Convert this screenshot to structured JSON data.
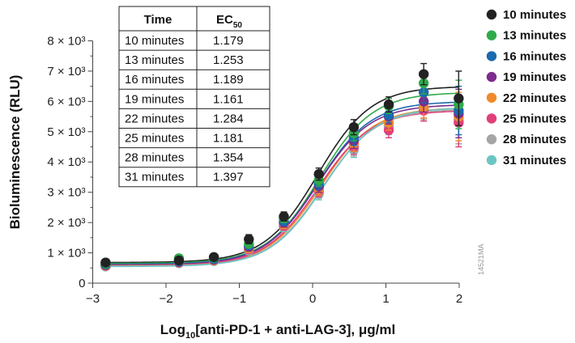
{
  "chart_data": {
    "type": "scatter",
    "xlabel": "Log10[anti-PD-1 + anti-LAG-3], μg/ml",
    "ylabel": "Bioluminescence (RLU)",
    "xlim": [
      -3,
      2
    ],
    "ylim": [
      0,
      8000
    ],
    "x_ticks": [
      {
        "v": -3,
        "label": "−3"
      },
      {
        "v": -2,
        "label": "−2"
      },
      {
        "v": -1,
        "label": "−1"
      },
      {
        "v": 0,
        "label": "0"
      },
      {
        "v": 1,
        "label": "1"
      },
      {
        "v": 2,
        "label": "2"
      }
    ],
    "y_ticks": [
      {
        "v": 0,
        "label": "0"
      },
      {
        "v": 1000,
        "label": "1 × 10³"
      },
      {
        "v": 2000,
        "label": "2 × 10³"
      },
      {
        "v": 3000,
        "label": "3 × 10³"
      },
      {
        "v": 4000,
        "label": "4 × 10³"
      },
      {
        "v": 5000,
        "label": "5 × 10³"
      },
      {
        "v": 6000,
        "label": "6 × 10³"
      },
      {
        "v": 7000,
        "label": "7 × 10³"
      },
      {
        "v": 8000,
        "label": "8 × 10³"
      }
    ],
    "x": [
      -2.824,
      -1.824,
      -1.347,
      -0.87,
      -0.392,
      0.085,
      0.562,
      1.039,
      1.516,
      1.993
    ],
    "series": [
      {
        "name": "10 minutes",
        "color": "#222222",
        "bottom": 680,
        "top": 6500,
        "ec50": 1.179,
        "values": [
          680,
          750,
          860,
          1450,
          2200,
          3600,
          5150,
          5900,
          6900,
          6100
        ],
        "errors": [
          60,
          80,
          80,
          150,
          150,
          200,
          250,
          250,
          350,
          900
        ]
      },
      {
        "name": "13 minutes",
        "color": "#2eaa4a",
        "bottom": 650,
        "top": 6300,
        "ec50": 1.253,
        "values": [
          650,
          820,
          840,
          1300,
          2150,
          3400,
          4950,
          5850,
          6600,
          5900
        ],
        "errors": [
          60,
          80,
          80,
          130,
          150,
          200,
          250,
          250,
          350,
          800
        ]
      },
      {
        "name": "16 minutes",
        "color": "#1a6aae",
        "bottom": 620,
        "top": 6000,
        "ec50": 1.189,
        "values": [
          620,
          720,
          800,
          1250,
          2050,
          3300,
          4800,
          5550,
          6300,
          5700
        ],
        "errors": [
          60,
          80,
          80,
          130,
          150,
          200,
          250,
          250,
          350,
          800
        ]
      },
      {
        "name": "19 minutes",
        "color": "#7b2c8c",
        "bottom": 600,
        "top": 5900,
        "ec50": 1.161,
        "values": [
          600,
          700,
          780,
          1200,
          2000,
          3200,
          4700,
          5500,
          6000,
          5600
        ],
        "errors": [
          60,
          80,
          80,
          130,
          150,
          200,
          250,
          250,
          350,
          800
        ]
      },
      {
        "name": "22 minutes",
        "color": "#f08a2a",
        "bottom": 580,
        "top": 5800,
        "ec50": 1.284,
        "values": [
          580,
          690,
          760,
          1150,
          1950,
          3100,
          4600,
          5300,
          5800,
          5500
        ],
        "errors": [
          60,
          80,
          80,
          130,
          150,
          200,
          250,
          250,
          350,
          800
        ]
      },
      {
        "name": "25 minutes",
        "color": "#e23f7a",
        "bottom": 570,
        "top": 5700,
        "ec50": 1.181,
        "values": [
          570,
          680,
          750,
          1120,
          1900,
          3050,
          4500,
          5050,
          5700,
          5300
        ],
        "errors": [
          60,
          80,
          80,
          130,
          150,
          200,
          250,
          250,
          350,
          800
        ]
      },
      {
        "name": "28 minutes",
        "color": "#a5a5a5",
        "bottom": 560,
        "top": 5750,
        "ec50": 1.354,
        "values": [
          560,
          670,
          740,
          1100,
          1880,
          3000,
          4450,
          5200,
          5750,
          5400
        ],
        "errors": [
          60,
          80,
          80,
          130,
          150,
          200,
          250,
          250,
          350,
          800
        ]
      },
      {
        "name": "31 minutes",
        "color": "#6cc5c5",
        "bottom": 550,
        "top": 5800,
        "ec50": 1.397,
        "values": [
          550,
          660,
          730,
          1080,
          1850,
          2950,
          4400,
          5150,
          5800,
          5400
        ],
        "errors": [
          60,
          80,
          80,
          130,
          150,
          200,
          250,
          250,
          350,
          800
        ]
      }
    ],
    "table": {
      "headers": [
        "Time",
        "EC",
        "50"
      ],
      "rows": [
        [
          "10 minutes",
          "1.179"
        ],
        [
          "13 minutes",
          "1.253"
        ],
        [
          "16 minutes",
          "1.189"
        ],
        [
          "19 minutes",
          "1.161"
        ],
        [
          "22 minutes",
          "1.284"
        ],
        [
          "25 minutes",
          "1.181"
        ],
        [
          "28 minutes",
          "1.354"
        ],
        [
          "31 minutes",
          "1.397"
        ]
      ]
    },
    "watermark": "14521MA",
    "legend_position": "right"
  }
}
